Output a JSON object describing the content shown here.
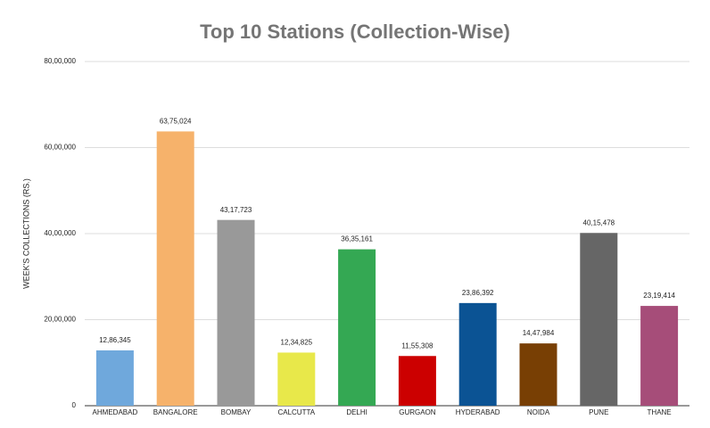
{
  "chart_data": {
    "type": "bar",
    "title": "Top 10 Stations (Collection-Wise)",
    "y_label": "WEEK'S COLLECTIONS (RS.)",
    "categories": [
      "AHMEDABAD",
      "BANGALORE",
      "BOMBAY",
      "CALCUTTA",
      "DELHI",
      "GURGAON",
      "HYDERABAD",
      "NOIDA",
      "PUNE",
      "THANE"
    ],
    "values": [
      1286345,
      6375024,
      4317723,
      1234825,
      3635161,
      1155308,
      2386392,
      1447984,
      4015478,
      2319414
    ],
    "value_labels": [
      "12,86,345",
      "63,75,024",
      "43,17,723",
      "12,34,825",
      "36,35,161",
      "11,55,308",
      "23,86,392",
      "14,47,984",
      "40,15,478",
      "23,19,414"
    ],
    "colors": [
      "#6fa8dc",
      "#f6b26b",
      "#999999",
      "#e8e84a",
      "#34a853",
      "#cc0000",
      "#0b5394",
      "#783f04",
      "#666666",
      "#a64d79"
    ],
    "ylim": [
      0,
      8000000
    ],
    "yticks": [
      0,
      {
        "value": 2000000,
        "label": "20,00,000"
      },
      {
        "value": 4000000,
        "label": "40,00,000"
      },
      {
        "value": 6000000,
        "label": "60,00,000"
      },
      {
        "value": 8000000,
        "label": "80,00,000"
      }
    ],
    "grid": true
  }
}
